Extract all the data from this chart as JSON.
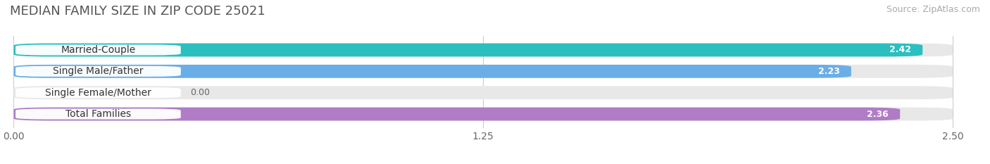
{
  "title": "MEDIAN FAMILY SIZE IN ZIP CODE 25021",
  "source": "Source: ZipAtlas.com",
  "categories": [
    "Married-Couple",
    "Single Male/Father",
    "Single Female/Mother",
    "Total Families"
  ],
  "values": [
    2.42,
    2.23,
    0.0,
    2.36
  ],
  "bar_colors": [
    "#2bbfbf",
    "#6aaee8",
    "#f4a0b0",
    "#b07cc6"
  ],
  "xlim": [
    0,
    2.5
  ],
  "xticks": [
    0.0,
    1.25,
    2.5
  ],
  "xtick_labels": [
    "0.00",
    "1.25",
    "2.50"
  ],
  "title_fontsize": 13,
  "source_fontsize": 9,
  "label_fontsize": 10,
  "value_fontsize": 9,
  "bar_height": 0.62,
  "figsize": [
    14.06,
    2.33
  ],
  "dpi": 100,
  "bg_color": "#ffffff",
  "track_color": "#e8e8e8",
  "grid_color": "#cccccc"
}
